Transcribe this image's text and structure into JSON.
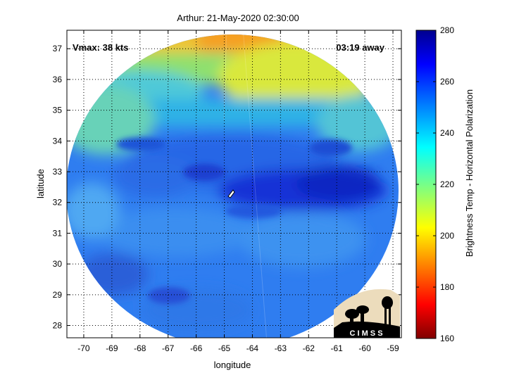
{
  "title": "Arthur: 21-May-2020 02:30:00",
  "annotations": {
    "vmax": "Vmax: 38 kts",
    "time_away": "03:19 away"
  },
  "logo_text": "C I M S S",
  "colorbar": {
    "label": "Brightness Temp - Horizontal Polarization",
    "ticks": [
      160,
      180,
      200,
      220,
      240,
      260,
      280
    ],
    "range": [
      160,
      280
    ],
    "colormap": "jet"
  },
  "chart_data": {
    "type": "heatmap",
    "title": "Arthur: 21-May-2020 02:30:00",
    "xlabel": "longitude",
    "ylabel": "latitude",
    "xlim": [
      -70.6,
      -58.7
    ],
    "ylim": [
      27.6,
      37.6
    ],
    "x_ticks": [
      -70,
      -69,
      -68,
      -67,
      -66,
      -65,
      -64,
      -63,
      -62,
      -61,
      -60,
      -59
    ],
    "y_ticks": [
      28,
      29,
      30,
      31,
      32,
      33,
      34,
      35,
      36,
      37
    ],
    "grid": true,
    "swath_center": {
      "lon": -64.6,
      "lat": 32.1
    },
    "storm_center": {
      "lon": -64.6,
      "lat": 32.2
    },
    "color_scale": "Brightness Temp - Horizontal Polarization",
    "value_range": [
      160,
      280
    ],
    "regions": [
      {
        "name": "north edge",
        "approx_temp": 205
      },
      {
        "name": "northern band",
        "approx_temp": 225
      },
      {
        "name": "central east band",
        "approx_temp": 265
      },
      {
        "name": "south",
        "approx_temp": 250
      }
    ]
  }
}
